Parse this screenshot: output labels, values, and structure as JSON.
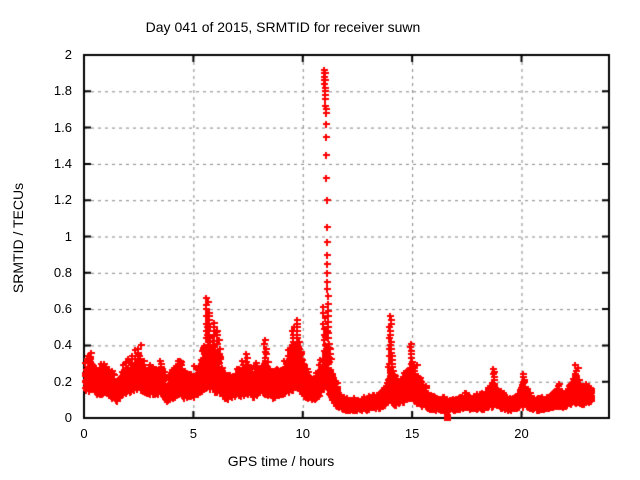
{
  "chart_data": {
    "type": "scatter",
    "title": "Day 041 of 2015, SRMTID for receiver suwn",
    "xlabel": "GPS time / hours",
    "ylabel": "SRMTID / TECUs",
    "xlim": [
      0,
      24
    ],
    "ylim": [
      0,
      2
    ],
    "xticks": [
      0,
      5,
      10,
      15,
      20
    ],
    "xtick_labels": [
      "0",
      "5",
      "10",
      "15",
      "20"
    ],
    "yticks": [
      0,
      0.2,
      0.4,
      0.6,
      0.8,
      1,
      1.2,
      1.4,
      1.6,
      1.8,
      2
    ],
    "ytick_labels": [
      "0",
      "0.2",
      "0.4",
      "0.6",
      "0.8",
      "1",
      "1.2",
      "1.4",
      "1.6",
      "1.8",
      "2"
    ],
    "grid": true,
    "legend": null,
    "marker": {
      "shape": "plus",
      "color": "#ff0000",
      "size": 7,
      "stroke": 2
    },
    "frame_color": "#000000",
    "grid_color": "#848484",
    "x_start": 0.04,
    "x_end": 23.2,
    "points_per_hour": 230,
    "seed": 20150041,
    "envelope": [
      [
        0.0,
        0.13,
        0.32
      ],
      [
        0.3,
        0.15,
        0.38
      ],
      [
        0.6,
        0.12,
        0.3
      ],
      [
        0.9,
        0.14,
        0.34
      ],
      [
        1.2,
        0.12,
        0.28
      ],
      [
        1.5,
        0.09,
        0.24
      ],
      [
        1.8,
        0.13,
        0.3
      ],
      [
        2.1,
        0.14,
        0.35
      ],
      [
        2.4,
        0.16,
        0.4
      ],
      [
        2.6,
        0.15,
        0.36
      ],
      [
        2.9,
        0.13,
        0.32
      ],
      [
        3.2,
        0.12,
        0.3
      ],
      [
        3.5,
        0.13,
        0.33
      ],
      [
        3.8,
        0.08,
        0.22
      ],
      [
        4.1,
        0.11,
        0.3
      ],
      [
        4.4,
        0.12,
        0.34
      ],
      [
        4.7,
        0.1,
        0.28
      ],
      [
        5.0,
        0.11,
        0.3
      ],
      [
        5.3,
        0.13,
        0.36
      ],
      [
        5.6,
        0.16,
        0.5
      ],
      [
        5.8,
        0.16,
        0.48
      ],
      [
        6.0,
        0.14,
        0.42
      ],
      [
        6.2,
        0.13,
        0.38
      ],
      [
        6.5,
        0.1,
        0.28
      ],
      [
        6.8,
        0.11,
        0.28
      ],
      [
        7.1,
        0.12,
        0.31
      ],
      [
        7.4,
        0.13,
        0.35
      ],
      [
        7.7,
        0.11,
        0.29
      ],
      [
        8.0,
        0.12,
        0.32
      ],
      [
        8.3,
        0.13,
        0.38
      ],
      [
        8.6,
        0.1,
        0.27
      ],
      [
        8.9,
        0.12,
        0.3
      ],
      [
        9.2,
        0.13,
        0.36
      ],
      [
        9.5,
        0.15,
        0.45
      ],
      [
        9.8,
        0.16,
        0.48
      ],
      [
        10.1,
        0.11,
        0.3
      ],
      [
        10.4,
        0.1,
        0.28
      ],
      [
        10.7,
        0.11,
        0.28
      ],
      [
        10.9,
        0.14,
        0.38
      ],
      [
        11.05,
        0.18,
        0.55
      ],
      [
        11.2,
        0.12,
        0.42
      ],
      [
        11.4,
        0.08,
        0.28
      ],
      [
        11.6,
        0.06,
        0.18
      ],
      [
        11.9,
        0.04,
        0.12
      ],
      [
        12.3,
        0.04,
        0.11
      ],
      [
        12.7,
        0.04,
        0.12
      ],
      [
        13.1,
        0.05,
        0.13
      ],
      [
        13.5,
        0.05,
        0.14
      ],
      [
        13.8,
        0.07,
        0.2
      ],
      [
        14.0,
        0.08,
        0.3
      ],
      [
        14.2,
        0.07,
        0.24
      ],
      [
        14.5,
        0.08,
        0.26
      ],
      [
        14.8,
        0.1,
        0.34
      ],
      [
        15.0,
        0.1,
        0.36
      ],
      [
        15.2,
        0.08,
        0.3
      ],
      [
        15.5,
        0.06,
        0.2
      ],
      [
        15.8,
        0.05,
        0.15
      ],
      [
        16.2,
        0.04,
        0.12
      ],
      [
        16.6,
        0.04,
        0.12
      ],
      [
        17.0,
        0.04,
        0.12
      ],
      [
        17.4,
        0.05,
        0.14
      ],
      [
        17.8,
        0.05,
        0.14
      ],
      [
        18.2,
        0.05,
        0.15
      ],
      [
        18.6,
        0.06,
        0.2
      ],
      [
        18.8,
        0.07,
        0.22
      ],
      [
        19.1,
        0.05,
        0.15
      ],
      [
        19.5,
        0.04,
        0.12
      ],
      [
        19.9,
        0.06,
        0.16
      ],
      [
        20.1,
        0.07,
        0.22
      ],
      [
        20.4,
        0.05,
        0.14
      ],
      [
        20.8,
        0.04,
        0.12
      ],
      [
        21.2,
        0.05,
        0.13
      ],
      [
        21.6,
        0.06,
        0.17
      ],
      [
        21.9,
        0.06,
        0.15
      ],
      [
        22.2,
        0.07,
        0.2
      ],
      [
        22.5,
        0.09,
        0.26
      ],
      [
        22.8,
        0.07,
        0.19
      ],
      [
        23.0,
        0.08,
        0.2
      ],
      [
        23.2,
        0.09,
        0.18
      ]
    ],
    "columns": [
      [
        2.55,
        0.16,
        0.42,
        0.02
      ],
      [
        5.63,
        0.26,
        0.68,
        0.02
      ],
      [
        5.72,
        0.24,
        0.6,
        0.02
      ],
      [
        5.95,
        0.2,
        0.55,
        0.025
      ],
      [
        6.15,
        0.18,
        0.5,
        0.025
      ],
      [
        7.45,
        0.13,
        0.37,
        0.02
      ],
      [
        8.3,
        0.13,
        0.45,
        0.025
      ],
      [
        9.55,
        0.18,
        0.52,
        0.02
      ],
      [
        9.78,
        0.2,
        0.55,
        0.02
      ],
      [
        10.98,
        0.28,
        0.62,
        0.03
      ],
      [
        13.98,
        0.1,
        0.57,
        0.02
      ],
      [
        14.06,
        0.08,
        0.4,
        0.02
      ],
      [
        14.95,
        0.11,
        0.42,
        0.02
      ],
      [
        18.7,
        0.06,
        0.28,
        0.015
      ],
      [
        20.05,
        0.06,
        0.25,
        0.015
      ],
      [
        21.65,
        0.07,
        0.2,
        0.015
      ],
      [
        22.5,
        0.08,
        0.3,
        0.015
      ]
    ],
    "spike_points": [
      [
        10.96,
        1.92
      ],
      [
        10.97,
        1.9
      ],
      [
        10.98,
        1.88
      ],
      [
        10.98,
        1.86
      ],
      [
        10.99,
        1.84
      ],
      [
        11.0,
        1.82
      ],
      [
        11.0,
        1.8
      ],
      [
        11.01,
        1.86
      ],
      [
        11.01,
        1.78
      ],
      [
        11.02,
        1.9
      ],
      [
        11.02,
        1.76
      ],
      [
        11.03,
        1.72
      ],
      [
        11.04,
        1.7
      ],
      [
        11.04,
        1.68
      ],
      [
        11.05,
        1.62
      ],
      [
        11.06,
        1.55
      ],
      [
        11.07,
        1.45
      ],
      [
        11.08,
        1.32
      ],
      [
        11.09,
        1.2
      ],
      [
        11.1,
        1.05
      ],
      [
        11.1,
        0.97
      ],
      [
        11.11,
        0.9
      ],
      [
        11.12,
        0.85
      ],
      [
        11.12,
        0.8
      ],
      [
        11.13,
        0.75
      ],
      [
        11.13,
        0.71
      ],
      [
        11.14,
        0.67
      ],
      [
        11.14,
        0.63
      ],
      [
        11.15,
        0.59
      ],
      [
        11.15,
        0.56
      ],
      [
        11.16,
        0.53
      ],
      [
        11.16,
        0.5
      ],
      [
        11.17,
        0.47
      ],
      [
        11.17,
        0.44
      ],
      [
        11.18,
        0.41
      ],
      [
        11.18,
        0.38
      ],
      [
        11.19,
        0.35
      ],
      [
        11.19,
        0.33
      ],
      [
        11.2,
        0.31
      ]
    ],
    "outlier_square": [
      16.58,
      0.005
    ]
  }
}
